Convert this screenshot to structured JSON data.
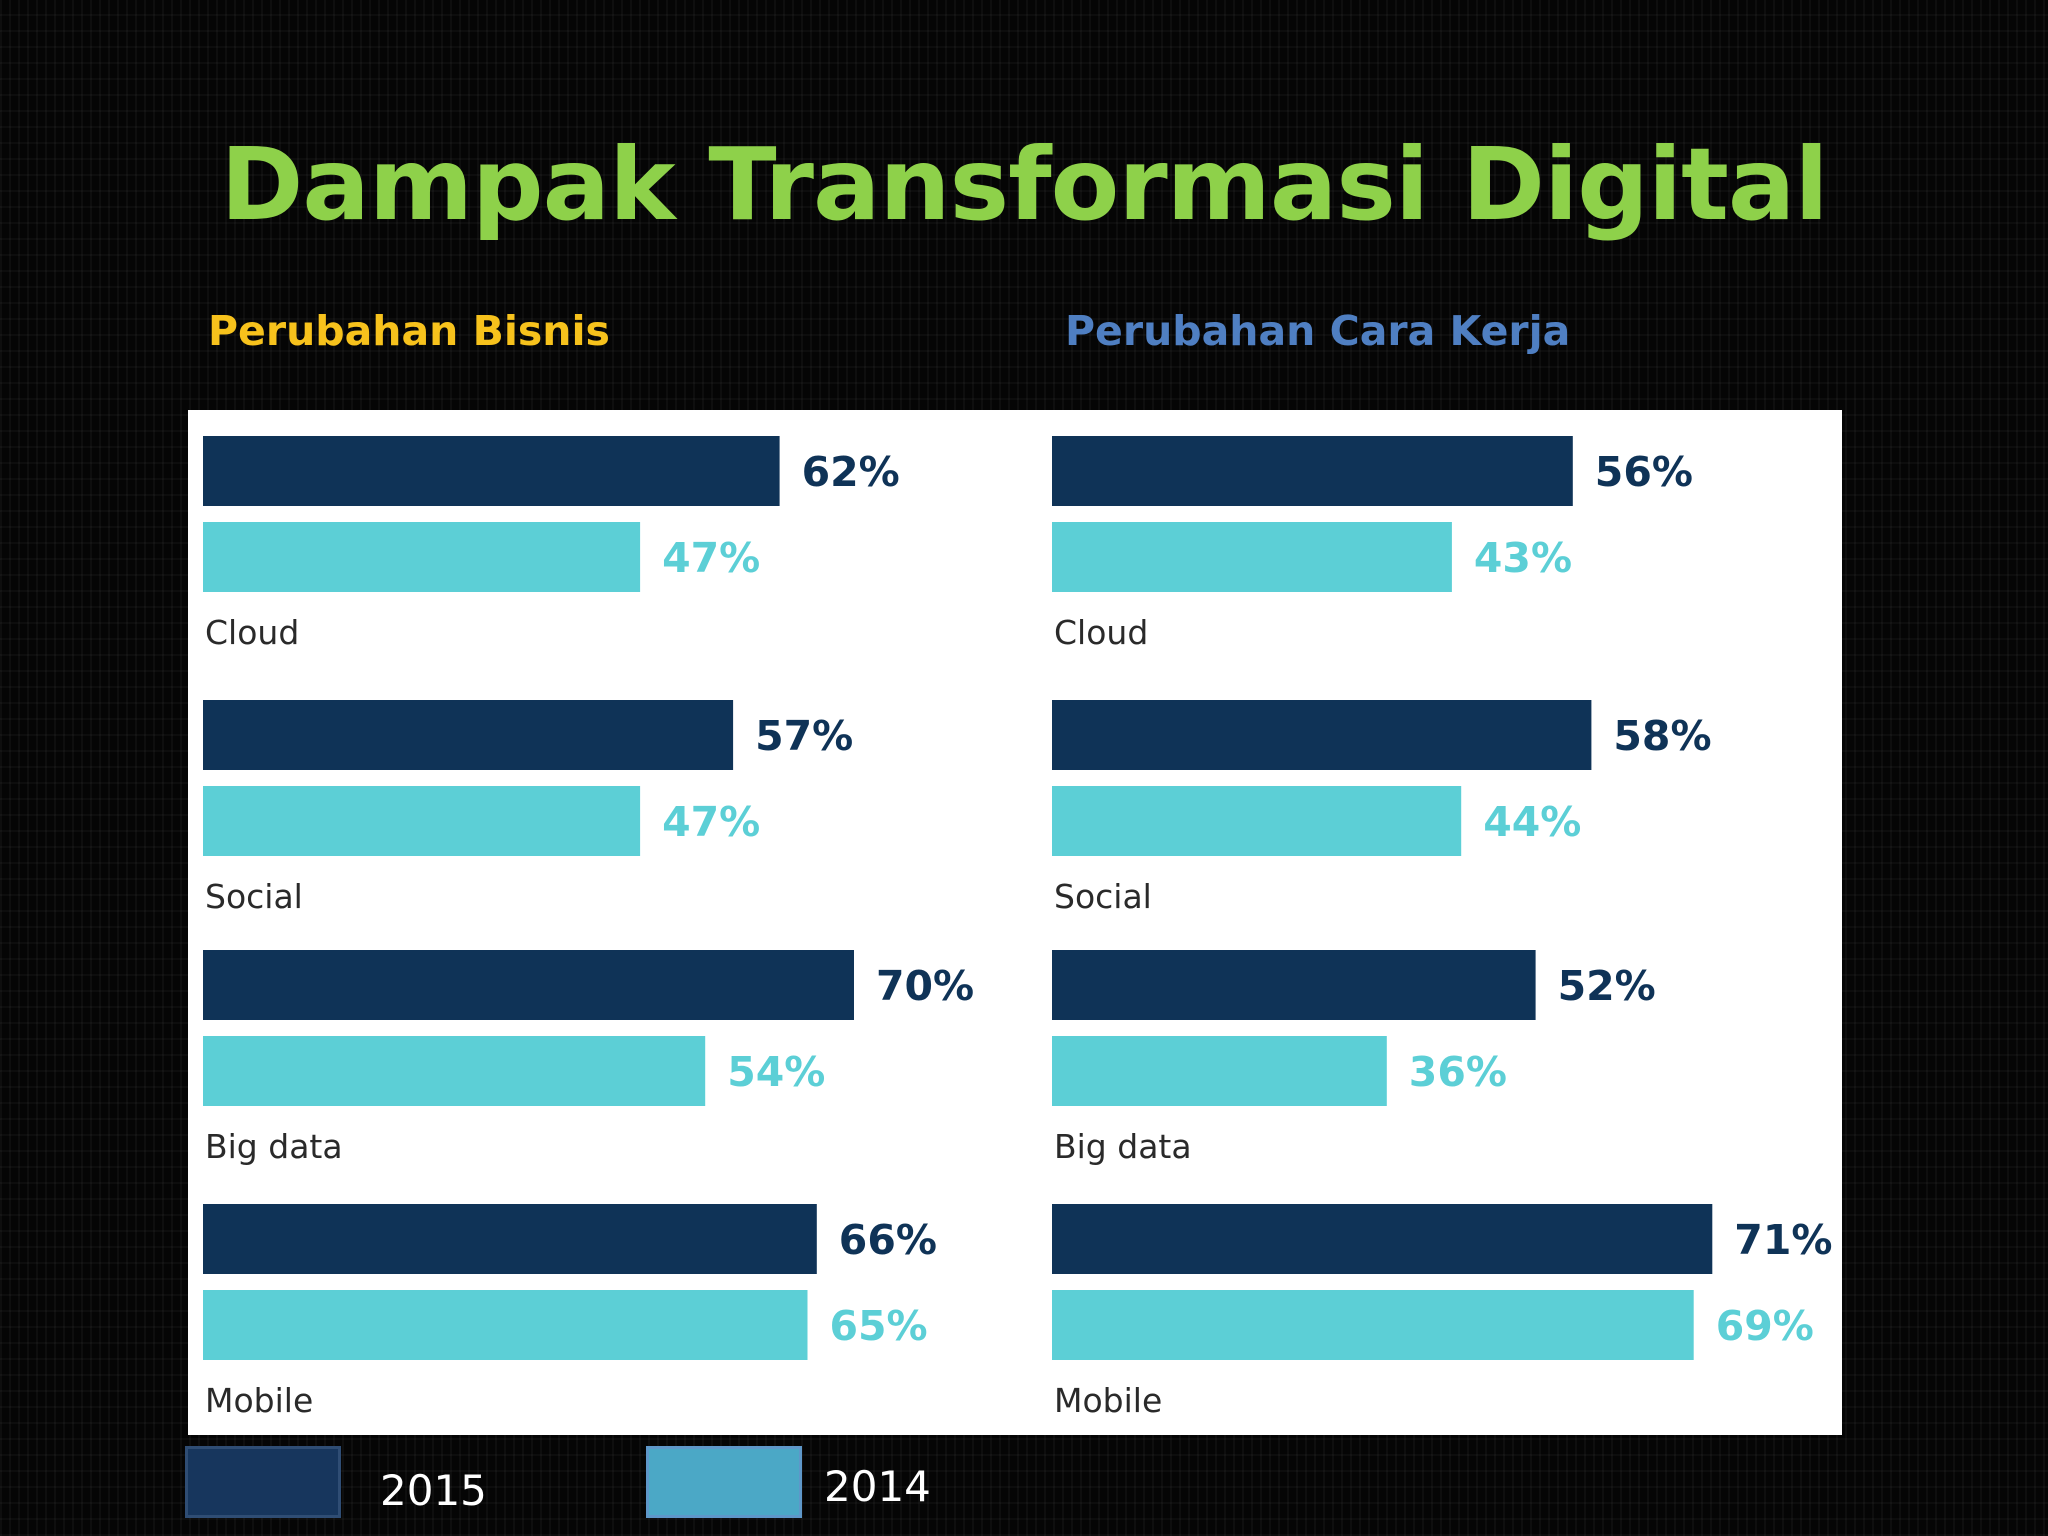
{
  "title": "Dampak Transformasi Digital",
  "subtitle_left": "Perubahan Bisnis",
  "subtitle_right": "Perubahan Cara Kerja",
  "colors": {
    "title": "#8ed14a",
    "subtitle_left": "#f7c21c",
    "subtitle_right": "#4f7fc2",
    "series_2015": "#0f3357",
    "series_2014": "#5ccfd6"
  },
  "legend": [
    {
      "label": "2015",
      "color": "#17365d"
    },
    {
      "label": "2014",
      "color": "#4ba8c6"
    }
  ],
  "chart_data": [
    {
      "type": "bar",
      "orientation": "horizontal",
      "panel": "Perubahan Bisnis",
      "categories": [
        "Cloud",
        "Social",
        "Big data",
        "Mobile"
      ],
      "series": [
        {
          "name": "2015",
          "values": [
            62,
            57,
            70,
            66
          ],
          "labels": [
            "62%",
            "57%",
            "70%",
            "66%"
          ]
        },
        {
          "name": "2014",
          "values": [
            47,
            47,
            54,
            65
          ],
          "labels": [
            "47%",
            "47%",
            "54%",
            "65%"
          ]
        }
      ],
      "xlim": [
        0,
        100
      ]
    },
    {
      "type": "bar",
      "orientation": "horizontal",
      "panel": "Perubahan Cara Kerja",
      "categories": [
        "Cloud",
        "Social",
        "Big data",
        "Mobile"
      ],
      "series": [
        {
          "name": "2015",
          "values": [
            56,
            58,
            52,
            71
          ],
          "labels": [
            "56%",
            "58%",
            "52%",
            "71%"
          ]
        },
        {
          "name": "2014",
          "values": [
            43,
            44,
            36,
            69
          ],
          "labels": [
            "43%",
            "44%",
            "36%",
            "69%"
          ]
        }
      ],
      "xlim": [
        0,
        100
      ]
    }
  ]
}
